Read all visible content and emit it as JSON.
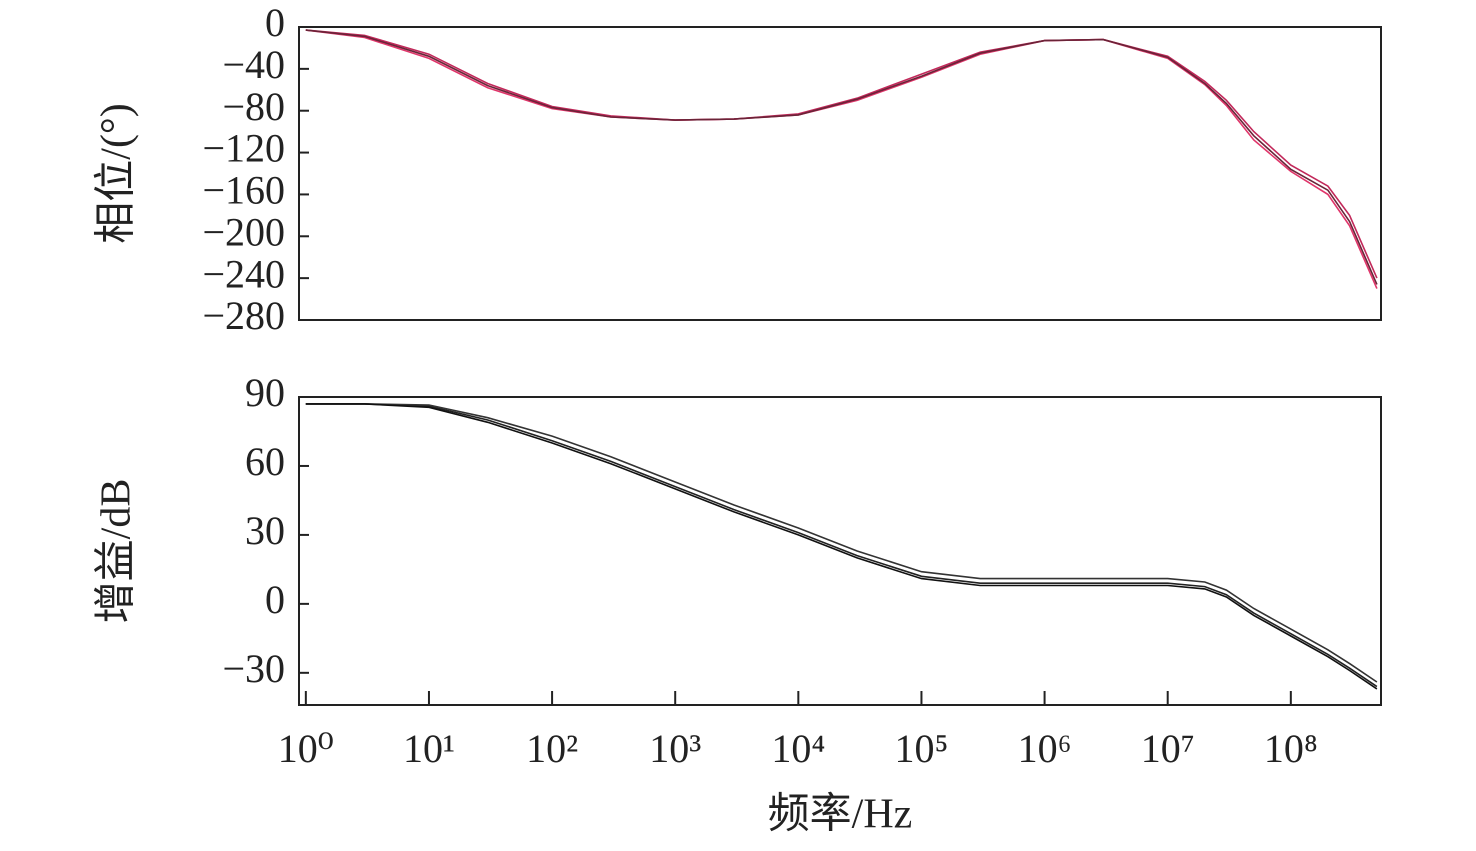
{
  "chart_data": [
    {
      "type": "line",
      "ylabel": "相位/(°)",
      "xscale": "log",
      "xlim": [
        0.88,
        540000000
      ],
      "ylim": [
        -280,
        0
      ],
      "yticks": [
        0,
        {
          "value": -40,
          "label": "−40"
        },
        {
          "value": -80,
          "label": "−80"
        },
        {
          "value": -120,
          "label": "−120"
        },
        {
          "value": -160,
          "label": "−160"
        },
        {
          "value": -200,
          "label": "−200"
        },
        {
          "value": -240,
          "label": "−240"
        },
        {
          "value": -280,
          "label": "−280"
        }
      ],
      "x": [
        1,
        3,
        10,
        30,
        100,
        300,
        1000,
        3000,
        10000,
        30000,
        100000,
        300000,
        1000000,
        3000000,
        10000000,
        20000000,
        30000000,
        50000000,
        100000000,
        200000000,
        300000000,
        500000000
      ],
      "series": [
        {
          "color": "#e0356a",
          "values": [
            -3,
            -10,
            -30,
            -58,
            -78,
            -86,
            -89,
            -88,
            -84,
            -70,
            -48,
            -26,
            -13,
            -12,
            -30,
            -55,
            -75,
            -108,
            -138,
            -160,
            -190,
            -250
          ]
        },
        {
          "color": "#c2285a",
          "values": [
            -3,
            -8,
            -26,
            -54,
            -76,
            -85,
            -89,
            -88,
            -83,
            -68,
            -45,
            -24,
            -13,
            -12,
            -28,
            -52,
            -70,
            -100,
            -132,
            -152,
            -180,
            -240
          ]
        },
        {
          "color": "#6a2438",
          "values": [
            -3,
            -9,
            -28,
            -56,
            -77,
            -86,
            -89,
            -88,
            -84,
            -69,
            -47,
            -25,
            -13,
            -12,
            -29,
            -54,
            -73,
            -104,
            -136,
            -156,
            -186,
            -246
          ]
        }
      ]
    },
    {
      "type": "line",
      "ylabel": "增益/dB",
      "xlabel": "频率/Hz",
      "xscale": "log",
      "xlim": [
        0.88,
        540000000
      ],
      "ylim": [
        -44,
        90
      ],
      "yticks": [
        {
          "value": -30,
          "label": "−30"
        },
        0,
        30,
        60,
        90
      ],
      "xticks": [
        {
          "value": 1,
          "label": "10⁰"
        },
        {
          "value": 10,
          "label": "10¹"
        },
        {
          "value": 100,
          "label": "10²"
        },
        {
          "value": 1000,
          "label": "10³"
        },
        {
          "value": 10000,
          "label": "10⁴"
        },
        {
          "value": 100000,
          "label": "10⁵"
        },
        {
          "value": 1000000,
          "label": "10⁶"
        },
        {
          "value": 10000000,
          "label": "10⁷"
        },
        {
          "value": 100000000,
          "label": "10⁸"
        }
      ],
      "x": [
        1,
        3,
        10,
        30,
        100,
        300,
        1000,
        3000,
        10000,
        30000,
        100000,
        300000,
        1000000,
        3000000,
        10000000,
        20000000,
        30000000,
        50000000,
        100000000,
        200000000,
        300000000,
        500000000
      ],
      "series": [
        {
          "color": "#222222",
          "values": [
            87,
            87,
            86,
            80,
            71,
            62,
            51,
            41,
            31,
            21,
            12,
            9,
            9,
            9,
            9,
            7.5,
            4,
            -4,
            -13,
            -22,
            -28,
            -36
          ]
        },
        {
          "color": "#333333",
          "values": [
            87,
            87,
            86.5,
            81,
            73,
            64,
            53,
            43,
            33,
            23,
            14,
            11,
            11,
            11,
            11,
            9.5,
            6,
            -2,
            -11,
            -20,
            -26,
            -34
          ]
        },
        {
          "color": "#111111",
          "values": [
            87,
            87,
            85.5,
            79,
            70,
            61,
            50,
            40,
            30,
            20,
            11,
            8,
            8,
            8,
            8,
            6.5,
            3,
            -5,
            -14,
            -23,
            -29,
            -37
          ]
        }
      ]
    }
  ]
}
